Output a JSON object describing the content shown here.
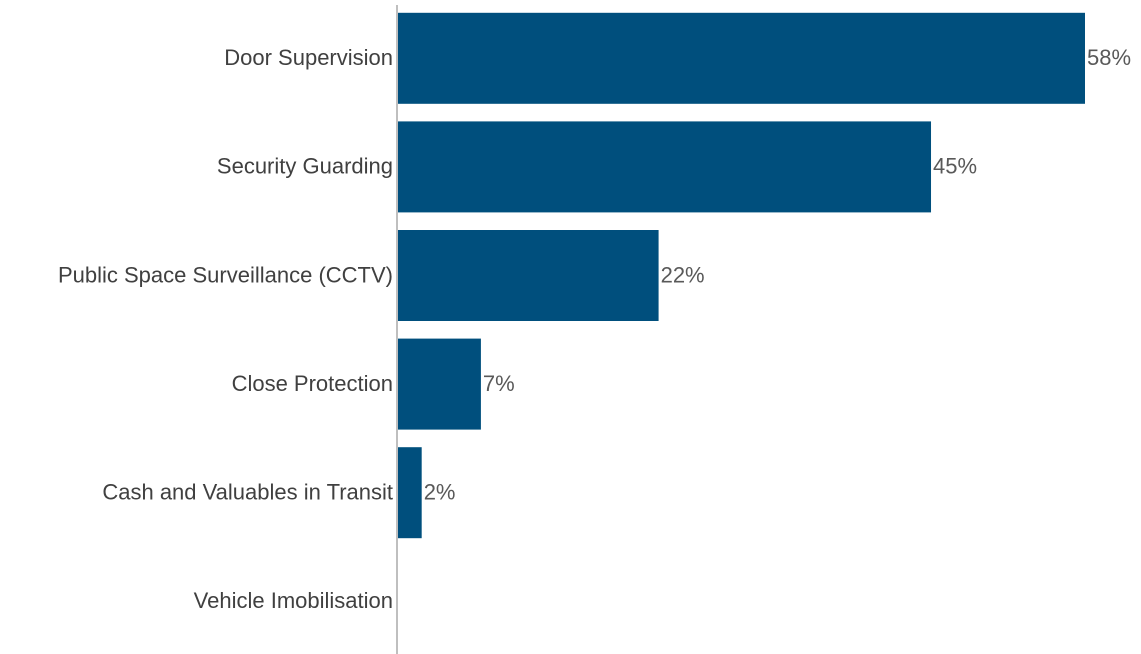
{
  "chart_data": {
    "type": "bar",
    "orientation": "horizontal",
    "categories": [
      "Door Supervision",
      "Security Guarding",
      "Public Space Surveillance (CCTV)",
      "Close Protection",
      "Cash and Valuables in Transit",
      "Vehicle Imobilisation"
    ],
    "values": [
      58,
      45,
      22,
      7,
      2,
      0
    ],
    "value_labels": [
      "58%",
      "45%",
      "22%",
      "7%",
      "2%",
      null
    ],
    "color": "#004f7d"
  }
}
